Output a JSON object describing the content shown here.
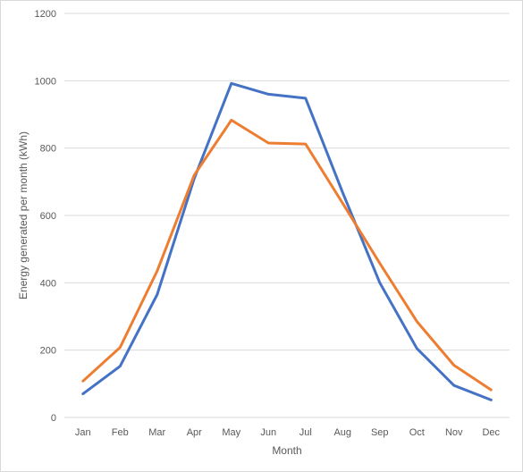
{
  "chart_data": {
    "type": "line",
    "title": "",
    "xlabel": "Month",
    "ylabel": "Energy generated per month (kWh)",
    "categories": [
      "Jan",
      "Feb",
      "Mar",
      "Apr",
      "May",
      "Jun",
      "Jul",
      "Aug",
      "Sep",
      "Oct",
      "Nov",
      "Dec"
    ],
    "ylim": [
      0,
      1200
    ],
    "yticks": [
      "0",
      "200",
      "400",
      "600",
      "800",
      "1000",
      "1200"
    ],
    "grid": true,
    "legend": "none",
    "series": [
      {
        "color": "#4472c4",
        "values": [
          70,
          152,
          365,
          710,
          992,
          960,
          948,
          668,
          400,
          205,
          95,
          52
        ]
      },
      {
        "color": "#ed7d31",
        "values": [
          108,
          208,
          435,
          720,
          883,
          815,
          812,
          636,
          458,
          285,
          155,
          82
        ]
      }
    ]
  }
}
